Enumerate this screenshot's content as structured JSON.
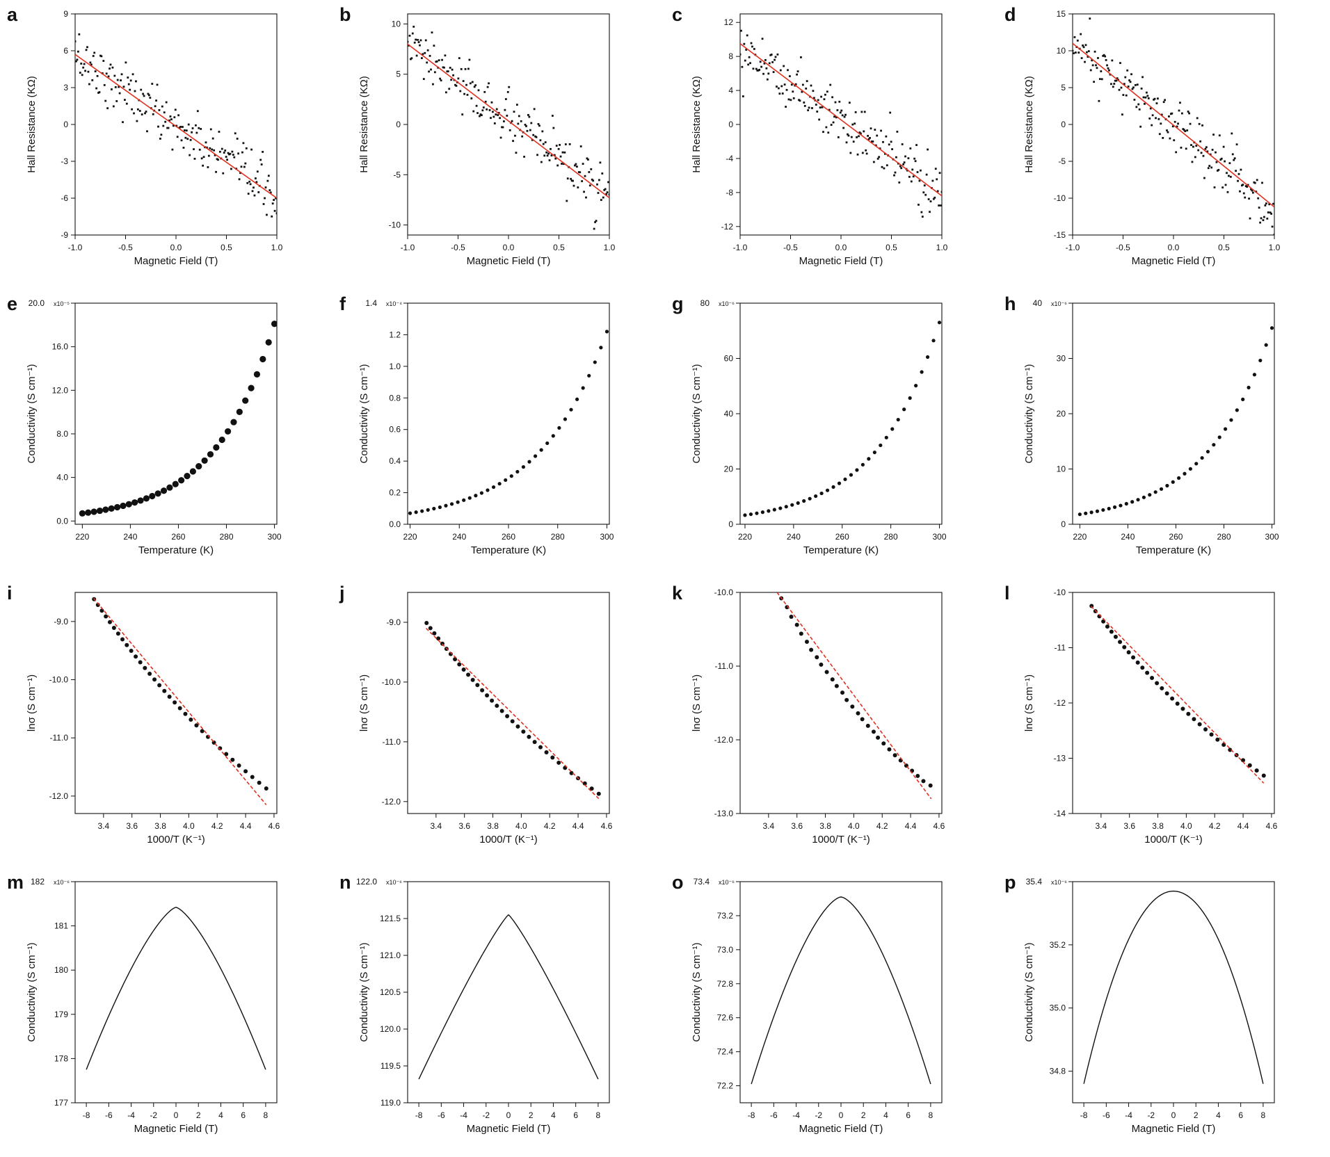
{
  "figure": {
    "colors": {
      "data": "#111111",
      "fit": "#e0301e",
      "frame": "#111111"
    },
    "chart_data": [
      {
        "id": "a",
        "label": "a",
        "type": "scatter",
        "xlabel": "Magnetic Field (T)",
        "ylabel": "Hall Resistance (KΩ)",
        "xlim": [
          -1.0,
          1.0
        ],
        "ylim": [
          -9,
          9
        ],
        "xticks": [
          -1.0,
          -0.5,
          0.0,
          0.5,
          1.0
        ],
        "yticks": [
          -9,
          -6,
          -3,
          0,
          3,
          6,
          9
        ],
        "x_tick_labels": [
          "-1.0",
          "-0.5",
          "0.0",
          "0.5",
          "1.0"
        ],
        "y_tick_labels": [
          "-9",
          "-6",
          "-3",
          "0",
          "3",
          "6",
          "9"
        ],
        "scatter": {
          "x_range": [
            -1.0,
            1.0
          ],
          "count": 200,
          "trend": [
            5.7,
            -6.0
          ],
          "noise": 1.1,
          "marker": "dot"
        },
        "fit": {
          "x": [
            -1.0,
            1.0
          ],
          "y": [
            5.7,
            -6.0
          ],
          "style": "solid"
        }
      },
      {
        "id": "b",
        "label": "b",
        "type": "scatter",
        "xlabel": "Magnetic Field (T)",
        "ylabel": "Hall Resistance (KΩ)",
        "xlim": [
          -1.0,
          1.0
        ],
        "ylim": [
          -11,
          11
        ],
        "xticks": [
          -1.0,
          -0.5,
          0.0,
          0.5,
          1.0
        ],
        "yticks": [
          -10,
          -5,
          0,
          5,
          10
        ],
        "x_tick_labels": [
          "-1.0",
          "-0.5",
          "0.0",
          "0.5",
          "1.0"
        ],
        "y_tick_labels": [
          "-10",
          "-5",
          "0",
          "5",
          "10"
        ],
        "scatter": {
          "x_range": [
            -1.0,
            1.0
          ],
          "count": 200,
          "trend": [
            8.0,
            -7.3
          ],
          "noise": 1.3,
          "marker": "dot"
        },
        "fit": {
          "x": [
            -1.0,
            1.0
          ],
          "y": [
            8.0,
            -7.3
          ],
          "style": "solid"
        }
      },
      {
        "id": "c",
        "label": "c",
        "type": "scatter",
        "xlabel": "Magnetic Field (T)",
        "ylabel": "Hall Resistance (KΩ)",
        "xlim": [
          -1.0,
          1.0
        ],
        "ylim": [
          -13,
          13
        ],
        "xticks": [
          -1.0,
          -0.5,
          0.0,
          0.5,
          1.0
        ],
        "yticks": [
          -12,
          -8,
          -4,
          0,
          4,
          8,
          12
        ],
        "x_tick_labels": [
          "-1.0",
          "-0.5",
          "0.0",
          "0.5",
          "1.0"
        ],
        "y_tick_labels": [
          "-12",
          "-8",
          "-4",
          "0",
          "4",
          "8",
          "12"
        ],
        "scatter": {
          "x_range": [
            -1.0,
            1.0
          ],
          "count": 200,
          "trend": [
            9.5,
            -8.4
          ],
          "noise": 1.7,
          "marker": "dot"
        },
        "fit": {
          "x": [
            -1.0,
            1.0
          ],
          "y": [
            9.5,
            -8.4
          ],
          "style": "solid"
        }
      },
      {
        "id": "d",
        "label": "d",
        "type": "scatter",
        "xlabel": "Magnetic Field (T)",
        "ylabel": "Hall Resistance (KΩ)",
        "xlim": [
          -1.0,
          1.0
        ],
        "ylim": [
          -15,
          15
        ],
        "xticks": [
          -1.0,
          -0.5,
          0.0,
          0.5,
          1.0
        ],
        "yticks": [
          -15,
          -10,
          -5,
          0,
          5,
          10,
          15
        ],
        "x_tick_labels": [
          "-1.0",
          "-0.5",
          "0.0",
          "0.5",
          "1.0"
        ],
        "y_tick_labels": [
          "-15",
          "-10",
          "-5",
          "0",
          "5",
          "10",
          "15"
        ],
        "scatter": {
          "x_range": [
            -1.0,
            1.0
          ],
          "count": 200,
          "trend": [
            11.0,
            -11.2
          ],
          "noise": 1.8,
          "marker": "dot"
        },
        "fit": {
          "x": [
            -1.0,
            1.0
          ],
          "y": [
            11.0,
            -11.2
          ],
          "style": "solid"
        }
      },
      {
        "id": "e",
        "label": "e",
        "type": "scatter",
        "xlabel": "Temperature (K)",
        "ylabel": "Conductivity (S cm⁻¹)",
        "xlim": [
          217,
          301
        ],
        "ylim": [
          -0.3,
          20.0
        ],
        "xticks": [
          220,
          240,
          260,
          280,
          300
        ],
        "yticks": [
          0,
          4,
          8,
          12,
          16,
          20
        ],
        "x_tick_labels": [
          "220",
          "240",
          "260",
          "280",
          "300"
        ],
        "y_tick_labels": [
          "0.0",
          "4.0",
          "8.0",
          "12.0",
          "16.0",
          "20.0"
        ],
        "y_exponent": "x10⁻⁵",
        "exp_series": {
          "T": [
            220,
            300
          ],
          "count": 34,
          "y_start": 0.7,
          "y_end": 18.1,
          "marker": "big"
        }
      },
      {
        "id": "f",
        "label": "f",
        "type": "scatter",
        "xlabel": "Temperature (K)",
        "ylabel": "Conductivity (S cm⁻¹)",
        "xlim": [
          219,
          301
        ],
        "ylim": [
          0.0,
          1.4
        ],
        "xticks": [
          220,
          240,
          260,
          280,
          300
        ],
        "yticks": [
          0.0,
          0.2,
          0.4,
          0.6,
          0.8,
          1.0,
          1.2,
          1.4
        ],
        "x_tick_labels": [
          "220",
          "240",
          "260",
          "280",
          "300"
        ],
        "y_tick_labels": [
          "0.0",
          "0.2",
          "0.4",
          "0.6",
          "0.8",
          "1.0",
          "1.2",
          "1.4"
        ],
        "y_exponent": "x10⁻⁴",
        "exp_series": {
          "T": [
            220,
            300
          ],
          "count": 34,
          "y_start": 0.07,
          "y_end": 1.22,
          "marker": "small"
        }
      },
      {
        "id": "g",
        "label": "g",
        "type": "scatter",
        "xlabel": "Temperature (K)",
        "ylabel": "Conductivity (S cm⁻¹)",
        "xlim": [
          218,
          301
        ],
        "ylim": [
          0,
          80
        ],
        "xticks": [
          220,
          240,
          260,
          280,
          300
        ],
        "yticks": [
          0,
          20,
          40,
          60,
          80
        ],
        "x_tick_labels": [
          "220",
          "240",
          "260",
          "280",
          "300"
        ],
        "y_tick_labels": [
          "0",
          "20",
          "40",
          "60",
          "80"
        ],
        "y_exponent": "x10⁻⁶",
        "exp_series": {
          "T": [
            220,
            300
          ],
          "count": 34,
          "y_start": 3.3,
          "y_end": 73.0,
          "marker": "small"
        }
      },
      {
        "id": "h",
        "label": "h",
        "type": "scatter",
        "xlabel": "Temperature (K)",
        "ylabel": "Conductivity (S cm⁻¹)",
        "xlim": [
          217,
          301
        ],
        "ylim": [
          0,
          40
        ],
        "xticks": [
          220,
          240,
          260,
          280,
          300
        ],
        "yticks": [
          0,
          10,
          20,
          30,
          40
        ],
        "x_tick_labels": [
          "220",
          "240",
          "260",
          "280",
          "300"
        ],
        "y_tick_labels": [
          "0",
          "10",
          "20",
          "30",
          "40"
        ],
        "y_exponent": "x10⁻⁶",
        "exp_series": {
          "T": [
            220,
            300
          ],
          "count": 34,
          "y_start": 1.8,
          "y_end": 35.5,
          "marker": "small"
        }
      },
      {
        "id": "i",
        "label": "i",
        "type": "scatter",
        "xlabel": "1000/T (K⁻¹)",
        "ylabel": "lnσ (S cm⁻¹)",
        "xlim": [
          3.2,
          4.62
        ],
        "ylim": [
          -12.3,
          -8.5
        ],
        "xticks": [
          3.4,
          3.6,
          3.8,
          4.0,
          4.2,
          4.4,
          4.6
        ],
        "yticks": [
          -12.0,
          -11.0,
          -10.0,
          -9.0
        ],
        "x_tick_labels": [
          "3.4",
          "3.6",
          "3.8",
          "4.0",
          "4.2",
          "4.4",
          "4.6"
        ],
        "y_tick_labels": [
          "-12.0",
          "-11.0",
          "-10.0",
          "-9.0"
        ],
        "exp_series_ln": {
          "T": [
            220,
            300
          ],
          "count": 34,
          "y_start": 7e-06,
          "y_end": 0.000181,
          "marker": "medium"
        },
        "fit": {
          "x": [
            3.33,
            4.545
          ],
          "y": [
            -8.6,
            -12.15
          ],
          "style": "dashed"
        }
      },
      {
        "id": "j",
        "label": "j",
        "type": "scatter",
        "xlabel": "1000/T (K⁻¹)",
        "ylabel": "lnσ (S cm⁻¹)",
        "xlim": [
          3.2,
          4.62
        ],
        "ylim": [
          -12.2,
          -8.5
        ],
        "xticks": [
          3.4,
          3.6,
          3.8,
          4.0,
          4.2,
          4.4,
          4.6
        ],
        "yticks": [
          -12.0,
          -11.0,
          -10.0,
          -9.0
        ],
        "x_tick_labels": [
          "3.4",
          "3.6",
          "3.8",
          "4.0",
          "4.2",
          "4.4",
          "4.6"
        ],
        "y_tick_labels": [
          "-12.0",
          "-11.0",
          "-10.0",
          "-9.0"
        ],
        "exp_series_ln": {
          "T": [
            220,
            300
          ],
          "count": 34,
          "y_start": 7e-06,
          "y_end": 0.000122,
          "marker": "medium"
        },
        "fit": {
          "x": [
            3.33,
            4.545
          ],
          "y": [
            -9.1,
            -11.95
          ],
          "style": "dashed"
        }
      },
      {
        "id": "k",
        "label": "k",
        "type": "scatter",
        "xlabel": "1000/T (K⁻¹)",
        "ylabel": "lnσ (S cm⁻¹)",
        "xlim": [
          3.2,
          4.62
        ],
        "ylim": [
          -13.0,
          -10.0
        ],
        "xticks": [
          3.4,
          3.6,
          3.8,
          4.0,
          4.2,
          4.4,
          4.6
        ],
        "yticks": [
          -13.0,
          -12.0,
          -11.0,
          -10.0
        ],
        "x_tick_labels": [
          "3.4",
          "3.6",
          "3.8",
          "4.0",
          "4.2",
          "4.4",
          "4.6"
        ],
        "y_tick_labels": [
          "-13.0",
          "-12.0",
          "-11.0",
          "-10.0"
        ],
        "points": {
          "x": [
            3.49,
            3.53,
            3.56,
            3.6,
            3.63,
            3.67,
            3.7,
            3.74,
            3.77,
            3.81,
            3.85,
            3.88,
            3.92,
            3.95,
            3.99,
            4.03,
            4.06,
            4.1,
            4.14,
            4.17,
            4.21,
            4.25,
            4.29,
            4.33,
            4.37,
            4.41,
            4.45,
            4.49,
            4.54
          ],
          "y": [
            -10.08,
            -10.2,
            -10.33,
            -10.44,
            -10.56,
            -10.67,
            -10.78,
            -10.88,
            -10.98,
            -11.08,
            -11.18,
            -11.27,
            -11.36,
            -11.46,
            -11.55,
            -11.64,
            -11.72,
            -11.81,
            -11.89,
            -11.97,
            -12.05,
            -12.13,
            -12.21,
            -12.28,
            -12.35,
            -12.42,
            -12.49,
            -12.56,
            -12.62
          ],
          "marker": "medium"
        },
        "fit": {
          "x": [
            3.46,
            4.545
          ],
          "y": [
            -10.0,
            -12.8
          ],
          "style": "dashed"
        }
      },
      {
        "id": "l",
        "label": "l",
        "type": "scatter",
        "xlabel": "1000/T (K⁻¹)",
        "ylabel": "lnσ (S cm⁻¹)",
        "xlim": [
          3.2,
          4.62
        ],
        "ylim": [
          -14,
          -10
        ],
        "xticks": [
          3.4,
          3.6,
          3.8,
          4.0,
          4.2,
          4.4,
          4.6
        ],
        "yticks": [
          -14,
          -13,
          -12,
          -11,
          -10
        ],
        "x_tick_labels": [
          "3.4",
          "3.6",
          "3.8",
          "4.0",
          "4.2",
          "4.4",
          "4.6"
        ],
        "y_tick_labels": [
          "-14",
          "-13",
          "-12",
          "-11",
          "-10"
        ],
        "exp_series_ln": {
          "T": [
            220,
            300
          ],
          "count": 34,
          "y_start": 1.65e-06,
          "y_end": 3.55e-05,
          "marker": "medium"
        },
        "fit": {
          "x": [
            3.33,
            4.545
          ],
          "y": [
            -10.25,
            -13.45
          ],
          "style": "dashed"
        }
      },
      {
        "id": "m",
        "label": "m",
        "type": "line",
        "xlabel": "Magnetic Field (T)",
        "ylabel": "Conductivity (S cm⁻¹)",
        "xlim": [
          -9,
          9
        ],
        "ylim": [
          177,
          182
        ],
        "xticks": [
          -8,
          -6,
          -4,
          -2,
          0,
          2,
          4,
          6,
          8
        ],
        "yticks": [
          177,
          178,
          179,
          180,
          181,
          182
        ],
        "x_tick_labels": [
          "-8",
          "-6",
          "-4",
          "-2",
          "0",
          "2",
          "4",
          "6",
          "8"
        ],
        "y_tick_labels": [
          "177",
          "178",
          "179",
          "180",
          "181",
          "182"
        ],
        "y_exponent": "x10⁻⁶",
        "curve": {
          "x_range": [
            -8,
            8
          ],
          "peak": 181.42,
          "end": 177.75,
          "power": 1.4
        }
      },
      {
        "id": "n",
        "label": "n",
        "type": "line",
        "xlabel": "Magnetic Field (T)",
        "ylabel": "Conductivity (S cm⁻¹)",
        "xlim": [
          -9,
          9
        ],
        "ylim": [
          119.0,
          122.0
        ],
        "xticks": [
          -8,
          -6,
          -4,
          -2,
          0,
          2,
          4,
          6,
          8
        ],
        "yticks": [
          119.0,
          119.5,
          120.0,
          120.5,
          121.0,
          121.5,
          122.0
        ],
        "x_tick_labels": [
          "-8",
          "-6",
          "-4",
          "-2",
          "0",
          "2",
          "4",
          "6",
          "8"
        ],
        "y_tick_labels": [
          "119.0",
          "119.5",
          "120.0",
          "120.5",
          "121.0",
          "121.5",
          "122.0"
        ],
        "y_exponent": "x10⁻⁶",
        "curve": {
          "x_range": [
            -8,
            8
          ],
          "peak": 121.55,
          "end": 119.32,
          "power": 1.15
        }
      },
      {
        "id": "o",
        "label": "o",
        "type": "line",
        "xlabel": "Magnetic Field (T)",
        "ylabel": "Conductivity (S cm⁻¹)",
        "xlim": [
          -9,
          9
        ],
        "ylim": [
          72.1,
          73.4
        ],
        "xticks": [
          -8,
          -6,
          -4,
          -2,
          0,
          2,
          4,
          6,
          8
        ],
        "yticks": [
          72.2,
          72.4,
          72.6,
          72.8,
          73.0,
          73.2,
          73.4
        ],
        "x_tick_labels": [
          "-8",
          "-6",
          "-4",
          "-2",
          "0",
          "2",
          "4",
          "6",
          "8"
        ],
        "y_tick_labels": [
          "72.2",
          "72.4",
          "72.6",
          "72.8",
          "73.0",
          "73.2",
          "73.4"
        ],
        "y_exponent": "x10⁻⁶",
        "curve": {
          "x_range": [
            -8,
            8
          ],
          "peak": 73.31,
          "end": 72.21,
          "power": 1.55
        }
      },
      {
        "id": "p",
        "label": "p",
        "type": "line",
        "xlabel": "Magnetic Field (T)",
        "ylabel": "Conductivity (S cm⁻¹)",
        "xlim": [
          -9,
          9
        ],
        "ylim": [
          34.7,
          35.4
        ],
        "xticks": [
          -8,
          -6,
          -4,
          -2,
          0,
          2,
          4,
          6,
          8
        ],
        "yticks": [
          34.8,
          35.0,
          35.2,
          35.4
        ],
        "x_tick_labels": [
          "-8",
          "-6",
          "-4",
          "-2",
          "0",
          "2",
          "4",
          "6",
          "8"
        ],
        "y_tick_labels": [
          "34.8",
          "35.0",
          "35.2",
          "35.4"
        ],
        "y_exponent": "x10⁻⁶",
        "curve": {
          "x_range": [
            -8,
            8
          ],
          "peak": 35.37,
          "end": 34.76,
          "power": 2.0
        }
      }
    ]
  }
}
